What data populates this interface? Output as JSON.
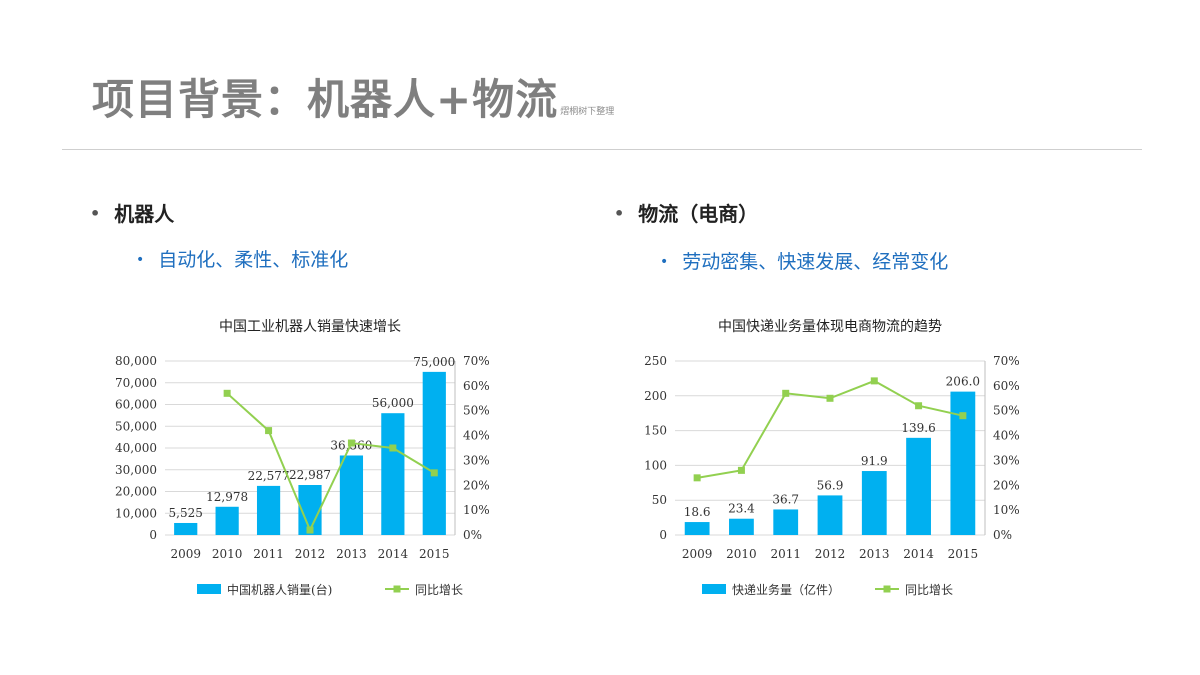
{
  "header": {
    "title": "项目背景：机器人+物流",
    "watermark": "熠桐树下整理"
  },
  "left_section": {
    "heading": "机器人",
    "subpoint": "自动化、柔性、标准化"
  },
  "right_section": {
    "heading": "物流（电商）",
    "subpoint": "劳动密集、快速发展、经常变化"
  },
  "colors": {
    "bar": "#00b0f0",
    "line": "#92d050",
    "title": "#7f7f7f",
    "subpoint": "#1f6fbf"
  },
  "chart_data": [
    {
      "type": "bar",
      "title": "中国工业机器人销量快速增长",
      "categories": [
        "2009",
        "2010",
        "2011",
        "2012",
        "2013",
        "2014",
        "2015"
      ],
      "series": [
        {
          "name": "中国机器人销量(台)",
          "kind": "bar",
          "axis": "left",
          "values": [
            5525,
            12978,
            22577,
            22987,
            36560,
            56000,
            75000
          ],
          "labels": [
            "5,525",
            "12,978",
            "22,577",
            "22,987",
            "36,560",
            "56,000",
            "75,000"
          ]
        },
        {
          "name": "同比增长",
          "kind": "line",
          "axis": "right",
          "values": [
            null,
            0.57,
            0.42,
            0.02,
            0.37,
            0.35,
            0.25
          ]
        }
      ],
      "y_left": {
        "min": 0,
        "max": 80000,
        "ticks": [
          "0",
          "10,000",
          "20,000",
          "30,000",
          "40,000",
          "50,000",
          "60,000",
          "70,000",
          "80,000"
        ]
      },
      "y_right": {
        "min": 0,
        "max": 0.7,
        "ticks": [
          "0%",
          "10%",
          "20%",
          "30%",
          "40%",
          "50%",
          "60%",
          "70%"
        ]
      },
      "legend_position": "bottom"
    },
    {
      "type": "bar",
      "title": "中国快递业务量体现电商物流的趋势",
      "categories": [
        "2009",
        "2010",
        "2011",
        "2012",
        "2013",
        "2014",
        "2015"
      ],
      "series": [
        {
          "name": "快递业务量（亿件）",
          "kind": "bar",
          "axis": "left",
          "values": [
            18.6,
            23.4,
            36.7,
            56.9,
            91.9,
            139.6,
            206.0
          ],
          "labels": [
            "18.6",
            "23.4",
            "36.7",
            "56.9",
            "91.9",
            "139.6",
            "206.0"
          ]
        },
        {
          "name": "同比增长",
          "kind": "line",
          "axis": "right",
          "values": [
            0.23,
            0.26,
            0.57,
            0.55,
            0.62,
            0.52,
            0.48
          ]
        }
      ],
      "y_left": {
        "min": 0,
        "max": 250,
        "ticks": [
          "0",
          "50",
          "100",
          "150",
          "200",
          "250"
        ]
      },
      "y_right": {
        "min": 0,
        "max": 0.7,
        "ticks": [
          "0%",
          "10%",
          "20%",
          "30%",
          "40%",
          "50%",
          "60%",
          "70%"
        ]
      },
      "legend_position": "bottom"
    }
  ]
}
